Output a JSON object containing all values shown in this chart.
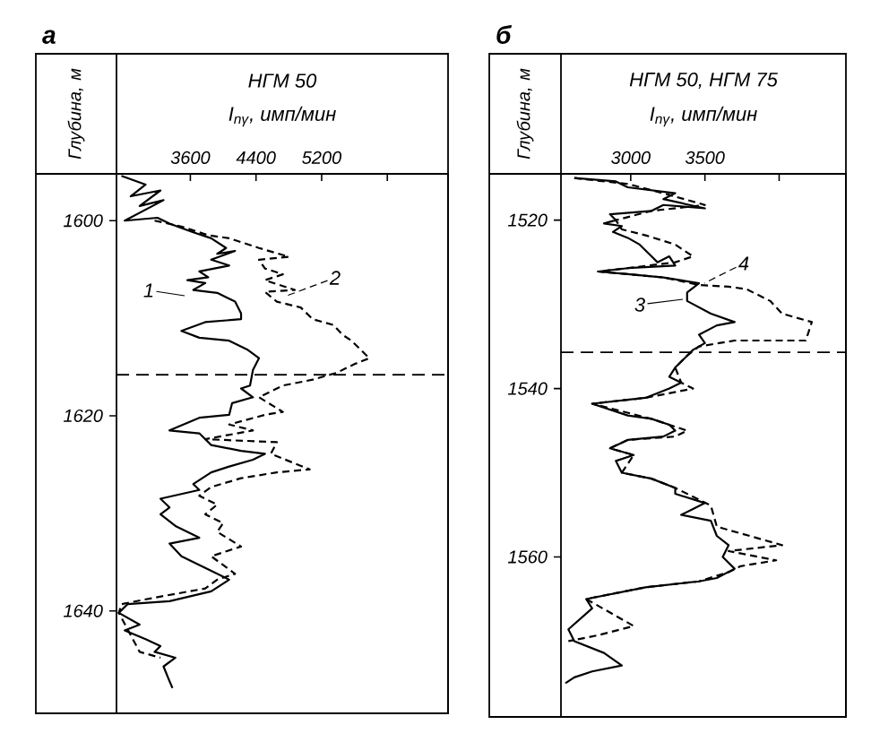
{
  "chart_data": [
    {
      "type": "line",
      "title": "а",
      "subtitle": "НГМ 50",
      "xlabel": "*I*$_{nγ}$, имп/мин",
      "ylabel": "Глубина, м",
      "xlim": [
        2700,
        6740
      ],
      "ylim": [
        1650.5,
        1595.2
      ],
      "xticks": [
        3600,
        4400,
        5200,
        {
          "value": 6000,
          "label": null
        }
      ],
      "yticks": [
        1600,
        1620,
        1640
      ],
      "ref_lines": [
        {
          "axis": "y",
          "value": 1615.8,
          "line_style": "dashed"
        }
      ],
      "series": [
        {
          "name": "1",
          "color": "#000000",
          "line_style": "solid",
          "x": [
            2760,
            3055,
            2873,
            3236,
            2982,
            3273,
            2800,
            3200,
            3346,
            3636,
            3854,
            4036,
            3927,
            4145,
            3854,
            4073,
            3709,
            3818,
            3564,
            3782,
            3636,
            3927,
            4145,
            4218,
            4218,
            3782,
            3491,
            3709,
            4073,
            4291,
            4436,
            4363,
            4327,
            4218,
            4363,
            4109,
            4073,
            3709,
            3346,
            3709,
            3854,
            4218,
            4509,
            4363,
            4073,
            3854,
            3636,
            3709,
            3236,
            3346,
            3236,
            3418,
            3709,
            3346,
            3491,
            3782,
            4073,
            3854,
            3346,
            2837,
            2728,
            2982,
            2800,
            3055,
            3236,
            3164,
            3418,
            3273,
            3346,
            3382
          ],
          "values": [
            1595.4,
            1596.3,
            1597.5,
            1596.9,
            1598.5,
            1597.9,
            1600.0,
            1599.7,
            1600.3,
            1601.2,
            1601.8,
            1602.8,
            1603.4,
            1603.1,
            1604.0,
            1604.6,
            1605.2,
            1605.8,
            1606.1,
            1606.4,
            1607.1,
            1607.4,
            1608.3,
            1609.5,
            1610.1,
            1610.4,
            1611.3,
            1612.0,
            1612.3,
            1613.2,
            1614.1,
            1615.3,
            1616.9,
            1617.2,
            1618.1,
            1618.7,
            1619.9,
            1620.2,
            1621.5,
            1621.8,
            1623.0,
            1623.6,
            1623.9,
            1624.5,
            1625.2,
            1625.8,
            1627.0,
            1627.6,
            1628.5,
            1629.4,
            1630.1,
            1631.3,
            1632.5,
            1633.1,
            1634.4,
            1635.6,
            1636.8,
            1638.0,
            1639.0,
            1639.3,
            1640.2,
            1641.4,
            1642.0,
            1642.9,
            1643.6,
            1644.2,
            1644.8,
            1645.7,
            1647.2,
            1647.9
          ]
        },
        {
          "name": "2",
          "color": "#000000",
          "line_style": "dashed",
          "x": [
            3164,
            3491,
            3818,
            4073,
            4436,
            4800,
            4436,
            4509,
            4727,
            4509,
            4872,
            4509,
            4654,
            4945,
            5090,
            5345,
            5454,
            5563,
            5781,
            5600,
            5381,
            5090,
            4727,
            4581,
            4436,
            4727,
            4509,
            4073,
            4363,
            3782,
            4654,
            4581,
            5054,
            4654,
            4218,
            3854,
            3709,
            3927,
            3782,
            4000,
            3927,
            4218,
            3854,
            4145,
            3927,
            3782,
            3127,
            2764,
            2728,
            2982,
            3236
          ],
          "values": [
            1600.0,
            1600.6,
            1601.5,
            1601.8,
            1602.8,
            1603.7,
            1604.0,
            1604.9,
            1605.5,
            1606.1,
            1607.1,
            1607.3,
            1608.3,
            1608.9,
            1610.1,
            1610.7,
            1611.7,
            1612.3,
            1614.1,
            1614.7,
            1615.6,
            1616.3,
            1616.9,
            1617.5,
            1618.1,
            1619.6,
            1619.9,
            1620.9,
            1621.5,
            1622.4,
            1622.7,
            1623.9,
            1625.5,
            1625.8,
            1626.4,
            1627.3,
            1628.2,
            1629.1,
            1630.1,
            1631.0,
            1631.9,
            1633.4,
            1634.4,
            1636.2,
            1636.8,
            1637.7,
            1638.7,
            1639.3,
            1640.2,
            1644.2,
            1644.8
          ]
        }
      ]
    },
    {
      "type": "line",
      "title": "б",
      "subtitle": "НГМ 50, НГМ 75",
      "xlabel": "*I*$_{nγ}$, имп/мин",
      "ylabel": "Глубина, м",
      "xlim": [
        2530,
        4450
      ],
      "ylim": [
        1579.0,
        1514.5
      ],
      "xticks": [
        3000,
        3500,
        {
          "value": 4000,
          "label": null
        }
      ],
      "yticks": [
        1520,
        1540,
        1560
      ],
      "ref_lines": [
        {
          "axis": "y",
          "value": 1535.7,
          "line_style": "dashed"
        }
      ],
      "series": [
        {
          "name": "3",
          "color": "#000000",
          "line_style": "solid",
          "x": [
            2620,
            2900,
            2980,
            3300,
            3220,
            3500,
            3220,
            3140,
            2860,
            2900,
            2820,
            2940,
            2880,
            2980,
            3060,
            3140,
            3180,
            3260,
            3300,
            2980,
            2780,
            2980,
            3220,
            3460,
            3380,
            3380,
            3540,
            3700,
            3580,
            3460,
            3500,
            3420,
            3380,
            3300,
            3260,
            3340,
            3260,
            3100,
            2740,
            2980,
            3140,
            3260,
            3300,
            3220,
            2980,
            2860,
            3020,
            2900,
            2940,
            3140,
            3300,
            3300,
            3500,
            3420,
            3340,
            3540,
            3580,
            3660,
            3620,
            3700,
            3580,
            3460,
            3100,
            2700,
            2740,
            2580,
            2620,
            2820,
            2940,
            2740,
            2620,
            2560
          ],
          "values": [
            1515.0,
            1515.4,
            1516.1,
            1516.8,
            1517.5,
            1518.6,
            1518.2,
            1518.9,
            1519.3,
            1520.0,
            1520.4,
            1520.7,
            1521.4,
            1522.1,
            1522.9,
            1524.3,
            1525.0,
            1524.3,
            1525.4,
            1525.7,
            1526.1,
            1526.4,
            1526.8,
            1527.5,
            1528.6,
            1529.6,
            1531.1,
            1532.1,
            1532.5,
            1533.6,
            1534.6,
            1535.4,
            1536.1,
            1537.5,
            1538.6,
            1539.3,
            1540.0,
            1541.1,
            1541.8,
            1543.2,
            1543.6,
            1544.3,
            1545.0,
            1545.7,
            1546.1,
            1547.1,
            1547.9,
            1548.6,
            1550.0,
            1550.7,
            1551.8,
            1552.5,
            1553.6,
            1554.3,
            1555.0,
            1555.7,
            1557.5,
            1558.6,
            1560.0,
            1561.4,
            1562.5,
            1562.9,
            1563.6,
            1565.0,
            1566.1,
            1568.6,
            1570.0,
            1571.4,
            1572.9,
            1573.6,
            1574.3,
            1575.0
          ]
        },
        {
          "name": "4",
          "color": "#000000",
          "line_style": "dashed",
          "x": [
            2620,
            2980,
            3220,
            3500,
            3140,
            2900,
            2940,
            3100,
            3300,
            3420,
            3300,
            2980,
            2780,
            3220,
            3460,
            3660,
            3780,
            3940,
            4020,
            4220,
            4180,
            3700,
            3460,
            3380,
            3300,
            3340,
            3420,
            3100,
            2740,
            3140,
            3380,
            3300,
            2980,
            2860,
            3020,
            2940,
            3140,
            3300,
            3540,
            3580,
            4020,
            3660,
            3980,
            3740,
            3660,
            3460,
            3100,
            2700,
            3020,
            2780,
            2580
          ],
          "values": [
            1515.0,
            1515.7,
            1516.8,
            1518.2,
            1518.9,
            1520.0,
            1521.1,
            1521.8,
            1522.9,
            1524.3,
            1525.0,
            1525.7,
            1526.1,
            1526.8,
            1527.7,
            1527.9,
            1528.2,
            1529.6,
            1531.1,
            1532.1,
            1534.3,
            1534.3,
            1535.0,
            1536.1,
            1537.5,
            1539.3,
            1540.0,
            1541.1,
            1541.8,
            1543.6,
            1545.0,
            1545.7,
            1546.1,
            1547.1,
            1547.9,
            1550.0,
            1550.7,
            1551.8,
            1553.9,
            1556.4,
            1558.6,
            1559.3,
            1560.4,
            1561.1,
            1561.8,
            1562.9,
            1563.6,
            1565.0,
            1568.2,
            1569.3,
            1570.0
          ]
        }
      ]
    }
  ]
}
